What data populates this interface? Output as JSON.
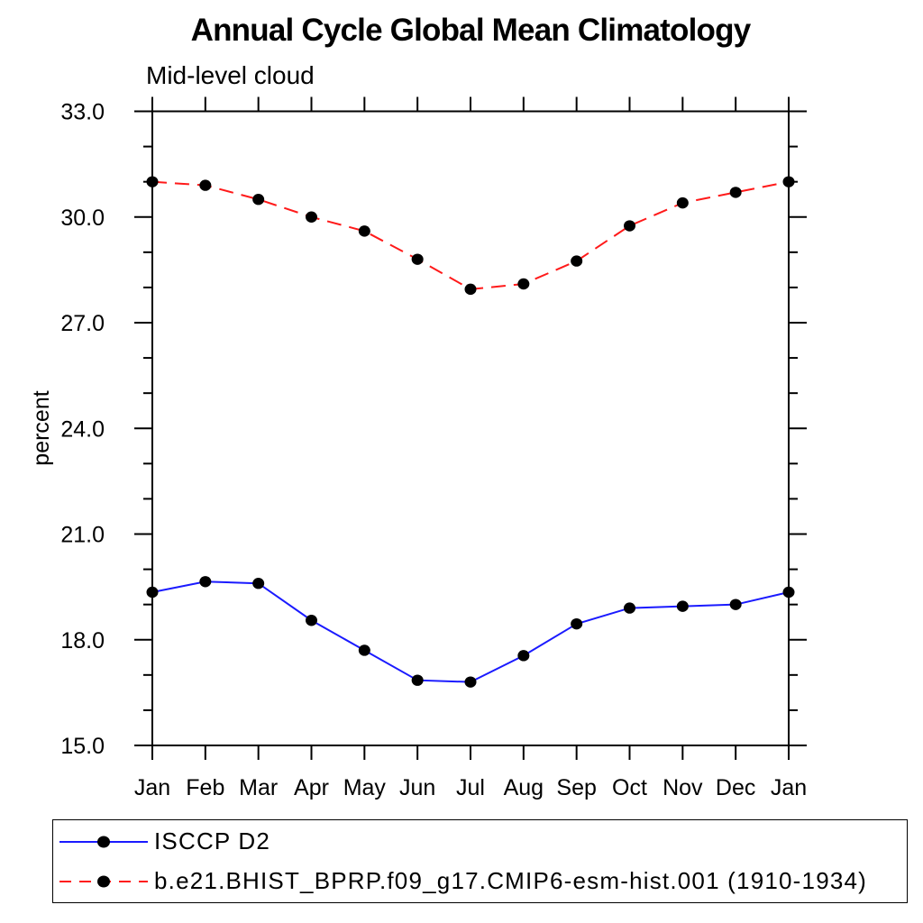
{
  "chart_data": {
    "type": "line",
    "title": "Annual Cycle Global Mean Climatology",
    "subtitle": "Mid-level cloud",
    "ylabel": "percent",
    "xlabel": "",
    "categories": [
      "Jan",
      "Feb",
      "Mar",
      "Apr",
      "May",
      "Jun",
      "Jul",
      "Aug",
      "Sep",
      "Oct",
      "Nov",
      "Dec",
      "Jan"
    ],
    "ylim": [
      15.0,
      33.0
    ],
    "y_major_ticks": [
      15.0,
      18.0,
      21.0,
      24.0,
      27.0,
      30.0,
      33.0
    ],
    "y_minor_tick_interval": 1.0,
    "grid": false,
    "legend_position": "bottom-left boxed",
    "axis_color": "#000000",
    "series": [
      {
        "name": "ISCCP D2",
        "line_color": "#1a1aff",
        "line_style": "solid",
        "marker": "filled-circle",
        "marker_color": "#000000",
        "values": [
          19.35,
          19.65,
          19.6,
          18.55,
          17.7,
          16.85,
          16.8,
          17.55,
          18.45,
          18.9,
          18.95,
          19.0,
          19.35
        ]
      },
      {
        "name": "b.e21.BHIST_BPRP.f09_g17.CMIP6-esm-hist.001 (1910-1934)",
        "line_color": "#ff1a1a",
        "line_style": "dashed",
        "marker": "filled-circle",
        "marker_color": "#000000",
        "values": [
          31.0,
          30.9,
          30.5,
          30.0,
          29.6,
          28.8,
          27.95,
          28.1,
          28.75,
          29.75,
          30.4,
          30.7,
          31.0
        ]
      }
    ]
  }
}
